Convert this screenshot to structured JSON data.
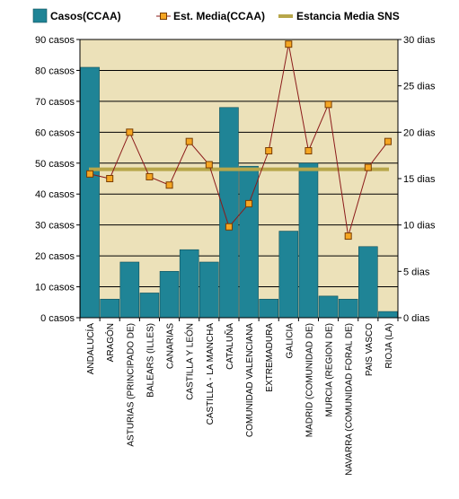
{
  "chart_data": {
    "type": "bar",
    "title": "",
    "legend": {
      "placement": "top",
      "entries": [
        {
          "label": "Casos(CCAA)",
          "kind": "bar"
        },
        {
          "label": "Est.  Media(CCAA)",
          "kind": "line-marker"
        },
        {
          "label": "Estancia Media SNS",
          "kind": "line"
        }
      ]
    },
    "colors": {
      "bars": "#1f8496",
      "bar_edge": "#0f4f5a",
      "line": "#8b1a1a",
      "marker_fill": "#f5a623",
      "marker_edge": "#7a3d00",
      "sns_line": "#b7a64a",
      "plot_bg": "#ece1b9",
      "grid": "#000000"
    },
    "categories": [
      "ANDALUCÍA",
      "ARAGÓN",
      "ASTURIAS (PRINCIPADO DE)",
      "BALEARS (ILLES)",
      "CANARIAS",
      "CASTILLA Y LEÓN",
      "CASTILLA - LA MANCHA",
      "CATALUÑA",
      "COMUNIDAD VALENCIANA",
      "EXTREMADURA",
      "GALICIA",
      "MADRID (COMUNIDAD DE)",
      "MURCIA (REGION DE)",
      "NAVARRA (COMUNIDAD FORAL DE)",
      "PAIS VASCO",
      "RIOJA (LA)"
    ],
    "series": [
      {
        "name": "Casos(CCAA)",
        "type": "bar",
        "axis": "left",
        "values": [
          81,
          6,
          18,
          8,
          15,
          22,
          18,
          68,
          49,
          6,
          28,
          50,
          7,
          6,
          23,
          2
        ]
      },
      {
        "name": "Est.  Media(CCAA)",
        "type": "line",
        "axis": "right",
        "values": [
          15.5,
          15.0,
          20.0,
          15.2,
          14.3,
          19.0,
          16.5,
          9.8,
          12.3,
          18.0,
          29.5,
          18.0,
          23.0,
          8.8,
          16.2,
          19.0
        ]
      },
      {
        "name": "Estancia Media SNS",
        "type": "hline",
        "axis": "right",
        "value": 16.0
      }
    ],
    "y_left": {
      "min": 0,
      "max": 90,
      "ticks": [
        0,
        10,
        20,
        30,
        40,
        50,
        60,
        70,
        80,
        90
      ],
      "tick_labels": [
        "0 casos",
        "10 casos",
        "20 casos",
        "30 casos",
        "40 casos",
        "50 casos",
        "60 casos",
        "70 casos",
        "80 casos",
        "90 casos"
      ]
    },
    "y_right": {
      "min": 0,
      "max": 30,
      "ticks": [
        0,
        5,
        10,
        15,
        20,
        25,
        30
      ],
      "tick_labels": [
        "0 dias",
        "5 dias",
        "10 dias",
        "15 dias",
        "20 dias",
        "25 dias",
        "30 dias"
      ]
    },
    "grid": true
  }
}
